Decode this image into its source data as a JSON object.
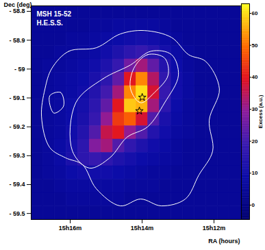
{
  "chart_data": {
    "type": "heatmap",
    "annotations": [
      "MSH 15-52",
      "H.E.S.S."
    ],
    "x_label": "RA (hours)",
    "y_label": "Dec (deg)",
    "xlim": [
      15.2848,
      15.1873
    ],
    "xticks": [
      {
        "value": 15.26667,
        "label": "15h16m"
      },
      {
        "value": 15.23333,
        "label": "15h14m"
      },
      {
        "value": 15.2,
        "label": "15h12m"
      }
    ],
    "ylim": [
      -59.521,
      -58.781
    ],
    "yticks": [
      {
        "value": -58.8,
        "label": "- 58.8"
      },
      {
        "value": -58.9,
        "label": "- 58.9"
      },
      {
        "value": -59,
        "label": "- 59"
      },
      {
        "value": -59.1,
        "label": "- 59.1"
      },
      {
        "value": -59.2,
        "label": "- 59.2"
      },
      {
        "value": -59.3,
        "label": "- 59.3"
      },
      {
        "value": -59.4,
        "label": "- 59.4"
      },
      {
        "value": -59.5,
        "label": "- 59.5"
      }
    ],
    "colorbar": {
      "label": "Excess (a.u.)",
      "lim": [
        -4.5,
        63
      ],
      "ticks": [
        0,
        10,
        20,
        30,
        40,
        50,
        60
      ]
    },
    "cells": [
      [
        5,
        5,
        5,
        5,
        5,
        5,
        5,
        5,
        5,
        5,
        5,
        5,
        5,
        5,
        5,
        5,
        5,
        5
      ],
      [
        5,
        5,
        5,
        5,
        5,
        6,
        6,
        7,
        7,
        7,
        7,
        6,
        5,
        5,
        5,
        5,
        5,
        5
      ],
      [
        5,
        5,
        5,
        6,
        6,
        7,
        8,
        9,
        10,
        11,
        10,
        8,
        6,
        5,
        5,
        5,
        5,
        5
      ],
      [
        5,
        5,
        6,
        6,
        7,
        8,
        10,
        13,
        16,
        18,
        15,
        11,
        8,
        6,
        5,
        5,
        5,
        5
      ],
      [
        5,
        6,
        6,
        7,
        8,
        10,
        13,
        18,
        26,
        32,
        24,
        14,
        9,
        6,
        5,
        5,
        5,
        5
      ],
      [
        5,
        6,
        7,
        8,
        9,
        12,
        16,
        24,
        40,
        52,
        34,
        17,
        10,
        7,
        5,
        5,
        5,
        5
      ],
      [
        5,
        6,
        7,
        8,
        10,
        14,
        20,
        32,
        52,
        60,
        38,
        18,
        10,
        7,
        5,
        5,
        5,
        5
      ],
      [
        5,
        6,
        7,
        9,
        11,
        16,
        24,
        40,
        58,
        56,
        32,
        16,
        9,
        6,
        5,
        5,
        5,
        5
      ],
      [
        5,
        6,
        7,
        9,
        12,
        18,
        30,
        44,
        48,
        38,
        22,
        12,
        8,
        6,
        5,
        5,
        5,
        5
      ],
      [
        5,
        6,
        7,
        10,
        14,
        22,
        36,
        40,
        30,
        22,
        14,
        10,
        7,
        6,
        5,
        5,
        5,
        5
      ],
      [
        5,
        6,
        8,
        11,
        16,
        28,
        32,
        22,
        17,
        13,
        10,
        8,
        6,
        5,
        5,
        5,
        5,
        5
      ],
      [
        5,
        6,
        8,
        12,
        16,
        18,
        16,
        13,
        11,
        9,
        8,
        7,
        6,
        5,
        5,
        5,
        5,
        5
      ],
      [
        5,
        6,
        7,
        9,
        10,
        10,
        10,
        9,
        8,
        7,
        6,
        6,
        5,
        5,
        5,
        5,
        5,
        5
      ],
      [
        5,
        5,
        6,
        7,
        7,
        7,
        7,
        7,
        6,
        6,
        6,
        5,
        5,
        5,
        5,
        5,
        5,
        5
      ],
      [
        5,
        5,
        5,
        6,
        6,
        6,
        6,
        6,
        5,
        5,
        5,
        5,
        5,
        5,
        5,
        5,
        5,
        5
      ],
      [
        5,
        5,
        5,
        5,
        5,
        5,
        5,
        5,
        5,
        5,
        5,
        5,
        5,
        5,
        5,
        5,
        5,
        5
      ]
    ],
    "markers": [
      {
        "ra": 15.2333,
        "dec": -59.098,
        "marker": "star"
      },
      {
        "ra": 15.2346,
        "dec": -59.145,
        "marker": "star"
      }
    ],
    "contours": [
      [
        [
          15.2752,
          -58.9976
        ],
        [
          15.2673,
          -58.9381
        ],
        [
          15.2546,
          -58.9262
        ],
        [
          15.2435,
          -58.8786
        ],
        [
          15.2324,
          -58.8667
        ],
        [
          15.2197,
          -58.8905
        ],
        [
          15.2118,
          -58.95
        ],
        [
          15.2038,
          -58.9738
        ],
        [
          15.1975,
          -59.069
        ],
        [
          15.2022,
          -59.1762
        ],
        [
          15.2006,
          -59.2833
        ],
        [
          15.207,
          -59.3667
        ],
        [
          15.2133,
          -59.45
        ],
        [
          15.2244,
          -59.4738
        ],
        [
          15.234,
          -59.45
        ],
        [
          15.2435,
          -59.4738
        ],
        [
          15.2546,
          -59.4143
        ],
        [
          15.261,
          -59.331
        ],
        [
          15.2689,
          -59.3071
        ],
        [
          15.2762,
          -59.2714
        ],
        [
          15.28,
          -59.1643
        ],
        [
          15.2784,
          -59.069
        ]
      ],
      [
        [
          15.2641,
          -59.1167
        ],
        [
          15.2514,
          -59.0333
        ],
        [
          15.2387,
          -58.9857
        ],
        [
          15.2292,
          -58.9381
        ],
        [
          15.2197,
          -58.95
        ],
        [
          15.2165,
          -59.0214
        ],
        [
          15.2229,
          -59.1167
        ],
        [
          15.2308,
          -59.2
        ],
        [
          15.2403,
          -59.2357
        ],
        [
          15.2483,
          -59.3071
        ],
        [
          15.2578,
          -59.3429
        ],
        [
          15.2657,
          -59.2833
        ]
      ],
      [
        [
          15.2372,
          -58.9976
        ],
        [
          15.2308,
          -58.95
        ],
        [
          15.2229,
          -58.9619
        ],
        [
          15.2213,
          -59.0214
        ],
        [
          15.2276,
          -59.081
        ],
        [
          15.234,
          -59.1167
        ],
        [
          15.2387,
          -59.069
        ]
      ],
      [
        [
          15.2762,
          -59.0929
        ],
        [
          15.2711,
          -59.081
        ],
        [
          15.2698,
          -59.1286
        ],
        [
          15.2743,
          -59.1524
        ]
      ]
    ]
  }
}
